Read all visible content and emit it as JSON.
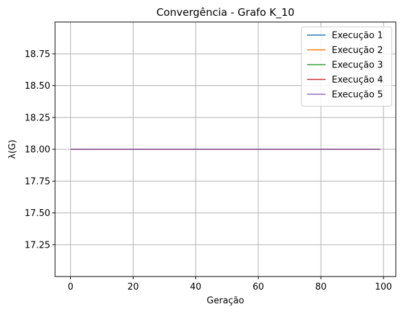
{
  "chart_data": {
    "type": "line",
    "title": "Convergência - Grafo K_10",
    "xlabel": "Geração",
    "ylabel": "λ(G)",
    "xlim": [
      -4.95,
      103.95
    ],
    "ylim": [
      17.0,
      19.0
    ],
    "xticks": [
      0,
      20,
      40,
      60,
      80,
      100
    ],
    "yticks": [
      17.25,
      17.5,
      17.75,
      18.0,
      18.25,
      18.5,
      18.75
    ],
    "ytick_labels": [
      "17.25",
      "17.50",
      "17.75",
      "18.00",
      "18.25",
      "18.50",
      "18.75"
    ],
    "grid": true,
    "legend_position": "top-right",
    "series": [
      {
        "name": "Execução 1",
        "color": "#1f77b4",
        "x_range": [
          0,
          99
        ],
        "constant_value": 18.0
      },
      {
        "name": "Execução 2",
        "color": "#ff7f0e",
        "x_range": [
          0,
          99
        ],
        "constant_value": 18.0
      },
      {
        "name": "Execução 3",
        "color": "#2ca02c",
        "x_range": [
          0,
          99
        ],
        "constant_value": 18.0
      },
      {
        "name": "Execução 4",
        "color": "#d62728",
        "x_range": [
          0,
          99
        ],
        "constant_value": 18.0
      },
      {
        "name": "Execução 5",
        "color": "#9467bd",
        "x_range": [
          0,
          99
        ],
        "constant_value": 18.0
      }
    ]
  }
}
